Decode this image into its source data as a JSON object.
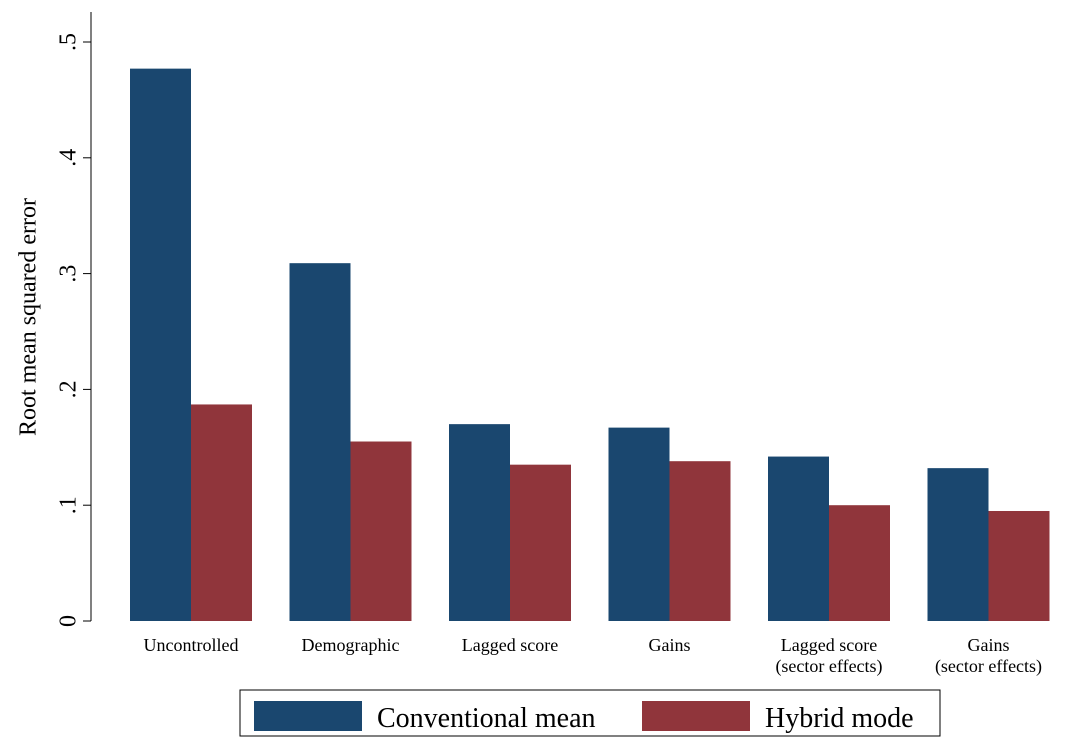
{
  "chart_data": {
    "type": "bar",
    "title": "",
    "xlabel": "",
    "ylabel": "Root mean squared error",
    "ylim": [
      0,
      0.5
    ],
    "yticks": [
      {
        "value": 0,
        "label": "0"
      },
      {
        "value": 0.1,
        "label": ".1"
      },
      {
        "value": 0.2,
        "label": ".2"
      },
      {
        "value": 0.3,
        "label": ".3"
      },
      {
        "value": 0.4,
        "label": ".4"
      },
      {
        "value": 0.5,
        "label": ".5"
      }
    ],
    "grid": false,
    "legend_placement": "bottom-center",
    "categories": [
      [
        "Uncontrolled"
      ],
      [
        "Demographic"
      ],
      [
        "Lagged score"
      ],
      [
        "Gains"
      ],
      [
        "Lagged score",
        "(sector effects)"
      ],
      [
        "Gains",
        "(sector effects)"
      ]
    ],
    "series": [
      {
        "name": "Conventional mean",
        "color": "#1a476f",
        "values": [
          0.477,
          0.309,
          0.17,
          0.167,
          0.142,
          0.132
        ]
      },
      {
        "name": "Hybrid mode",
        "color": "#90353b",
        "values": [
          0.187,
          0.155,
          0.135,
          0.138,
          0.1,
          0.095
        ]
      }
    ]
  }
}
